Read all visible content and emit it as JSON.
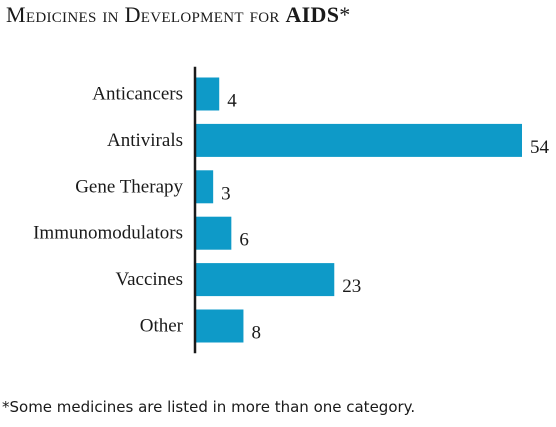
{
  "title_main": "Medicines in Development for ",
  "title_bold": "AIDS",
  "title_mark": "*",
  "footnote": "*Some medicines are listed in more than one category.",
  "chart_data": {
    "type": "bar",
    "orientation": "horizontal",
    "categories": [
      "Anticancers",
      "Antivirals",
      "Gene Therapy",
      "Immunomodulators",
      "Vaccines",
      "Other"
    ],
    "values": [
      4,
      54,
      3,
      6,
      23,
      8
    ],
    "xlim": [
      0,
      54
    ],
    "grid": false,
    "data_labels": true,
    "bar_color": "#0e9ac8"
  }
}
